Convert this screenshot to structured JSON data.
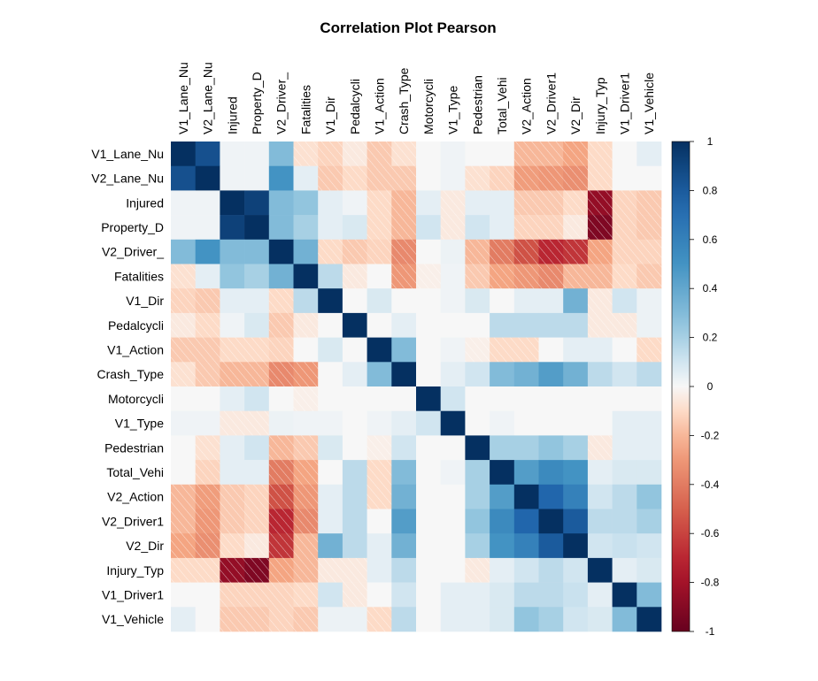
{
  "chart_data": {
    "type": "heatmap",
    "title": "Correlation Plot Pearson",
    "variables": [
      "V1_Lane_Nu",
      "V2_Lane_Nu",
      "Injured",
      "Property_D",
      "V2_Driver_",
      "Fatalities",
      "V1_Dir",
      "Pedalcycli",
      "V1_Action",
      "Crash_Type",
      "Motorcycli",
      "V1_Type",
      "Pedestrian",
      "Total_Vehi",
      "V2_Action",
      "V2_Driver1",
      "V2_Dir",
      "Injury_Typ",
      "V1_Driver1",
      "V1_Vehicle"
    ],
    "matrix": [
      [
        1,
        0.85,
        0.02,
        0.02,
        0.3,
        -0.08,
        -0.12,
        -0.05,
        -0.15,
        -0.08,
        0,
        0.02,
        0,
        0,
        -0.2,
        -0.2,
        -0.25,
        -0.1,
        0,
        0.05
      ],
      [
        0.85,
        1,
        0.02,
        0.02,
        0.5,
        0.05,
        -0.15,
        -0.1,
        -0.15,
        -0.15,
        0,
        0.02,
        -0.08,
        -0.12,
        -0.28,
        -0.3,
        -0.33,
        -0.1,
        0,
        0
      ],
      [
        0.02,
        0.02,
        1,
        0.92,
        0.3,
        0.25,
        0.05,
        0.02,
        -0.1,
        -0.2,
        0.05,
        -0.05,
        0.05,
        0.05,
        -0.15,
        -0.15,
        -0.1,
        -0.85,
        -0.12,
        -0.15
      ],
      [
        0.02,
        0.02,
        0.92,
        1,
        0.3,
        0.2,
        0.05,
        0.08,
        -0.1,
        -0.2,
        0.1,
        -0.05,
        0.1,
        0.05,
        -0.12,
        -0.12,
        -0.05,
        -0.92,
        -0.12,
        -0.15
      ],
      [
        0.3,
        0.5,
        0.3,
        0.3,
        1,
        0.35,
        -0.1,
        -0.15,
        -0.12,
        -0.35,
        0,
        0.03,
        -0.2,
        -0.4,
        -0.55,
        -0.7,
        -0.65,
        -0.25,
        -0.12,
        -0.12
      ],
      [
        -0.08,
        0.05,
        0.25,
        0.2,
        0.35,
        1,
        0.15,
        -0.05,
        0,
        -0.3,
        -0.03,
        0.02,
        -0.15,
        -0.25,
        -0.3,
        -0.35,
        -0.2,
        -0.2,
        -0.1,
        -0.15
      ],
      [
        -0.12,
        -0.15,
        0.05,
        0.05,
        -0.1,
        0.15,
        1,
        0,
        0.08,
        0,
        0,
        0.02,
        0.08,
        0,
        0.05,
        0.05,
        0.35,
        -0.05,
        0.1,
        0.03
      ],
      [
        -0.05,
        -0.1,
        0.02,
        0.08,
        -0.15,
        -0.05,
        0,
        1,
        0,
        0.05,
        0,
        0,
        0,
        0.15,
        0.15,
        0.15,
        0.15,
        -0.05,
        -0.05,
        0.03
      ],
      [
        -0.15,
        -0.15,
        -0.1,
        -0.1,
        -0.12,
        0,
        0.08,
        0,
        1,
        0.3,
        0,
        0.02,
        -0.03,
        -0.1,
        -0.1,
        0,
        0.05,
        0.05,
        0,
        -0.1
      ],
      [
        -0.08,
        -0.15,
        -0.2,
        -0.2,
        -0.35,
        -0.3,
        0,
        0.05,
        0.3,
        1,
        0,
        0.05,
        0.1,
        0.3,
        0.35,
        0.45,
        0.35,
        0.15,
        0.1,
        0.15
      ],
      [
        0,
        0,
        0.05,
        0.1,
        0,
        -0.03,
        0,
        0,
        0,
        0,
        1,
        0.1,
        0,
        0,
        0,
        0,
        0,
        0,
        0,
        0
      ],
      [
        0.02,
        0.02,
        -0.05,
        -0.05,
        0.03,
        0.02,
        0.02,
        0,
        0.02,
        0.05,
        0.1,
        1,
        0,
        0.02,
        0,
        0,
        0,
        0,
        0.05,
        0.05
      ],
      [
        0,
        -0.08,
        0.05,
        0.1,
        -0.2,
        -0.15,
        0.08,
        0,
        -0.03,
        0.1,
        0,
        0,
        1,
        0.2,
        0.2,
        0.25,
        0.2,
        -0.05,
        0.05,
        0.05
      ],
      [
        0,
        -0.12,
        0.05,
        0.05,
        -0.4,
        -0.25,
        0,
        0.15,
        -0.1,
        0.3,
        0,
        0.02,
        0.2,
        1,
        0.45,
        0.55,
        0.5,
        0.05,
        0.08,
        0.08
      ],
      [
        -0.2,
        -0.28,
        -0.15,
        -0.12,
        -0.55,
        -0.3,
        0.05,
        0.15,
        -0.1,
        0.35,
        0,
        0,
        0.2,
        0.45,
        1,
        0.75,
        0.6,
        0.1,
        0.15,
        0.25
      ],
      [
        -0.2,
        -0.3,
        -0.15,
        -0.12,
        -0.7,
        -0.35,
        0.05,
        0.15,
        0,
        0.45,
        0,
        0,
        0.25,
        0.55,
        0.75,
        1,
        0.8,
        0.15,
        0.15,
        0.2
      ],
      [
        -0.25,
        -0.33,
        -0.1,
        -0.05,
        -0.65,
        -0.2,
        0.35,
        0.15,
        0.05,
        0.35,
        0,
        0,
        0.2,
        0.5,
        0.6,
        0.8,
        1,
        0.1,
        0.12,
        0.1
      ],
      [
        -0.1,
        -0.1,
        -0.85,
        -0.92,
        -0.25,
        -0.2,
        -0.05,
        -0.05,
        0.05,
        0.15,
        0,
        0,
        -0.05,
        0.05,
        0.1,
        0.15,
        0.1,
        1,
        0.05,
        0.08
      ],
      [
        0,
        0,
        -0.12,
        -0.12,
        -0.12,
        -0.1,
        0.1,
        -0.05,
        0,
        0.1,
        0,
        0.05,
        0.05,
        0.08,
        0.15,
        0.15,
        0.12,
        0.05,
        1,
        0.3
      ],
      [
        0.05,
        0,
        -0.15,
        -0.15,
        -0.12,
        -0.15,
        0.03,
        0.03,
        -0.1,
        0.15,
        0,
        0.05,
        0.05,
        0.08,
        0.25,
        0.2,
        0.1,
        0.08,
        0.3,
        1
      ]
    ],
    "zlim": [
      -1,
      1
    ],
    "legend": {
      "position": "right",
      "ticks": [
        1,
        0.8,
        0.6,
        0.4,
        0.2,
        0,
        -0.2,
        -0.4,
        -0.6,
        -0.8,
        -1
      ],
      "tick_labels": [
        "1",
        "0.8",
        "0.6",
        "0.4",
        "0.2",
        "0",
        "-0.2",
        "-0.4",
        "-0.6",
        "-0.8",
        "-1"
      ]
    },
    "colors": {
      "positive_max": "#053061",
      "neutral": "#f7f7f7",
      "negative_max": "#67001f",
      "negative_hatch": "#ffffff"
    }
  }
}
